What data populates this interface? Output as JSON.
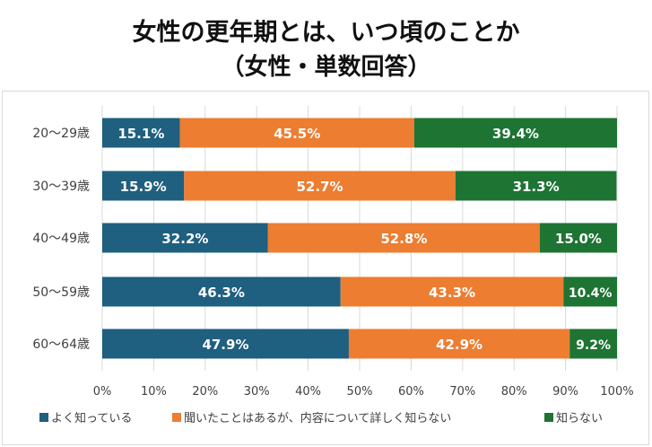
{
  "title": {
    "line1": "女性の更年期とは、いつ頃のことか",
    "line2": "（女性・単数回答）"
  },
  "colors": {
    "series1": "#1f5f7f",
    "series2": "#ed7d31",
    "series3": "#1e7433",
    "grid": "#d9d9d9",
    "label_text": "#ffffff",
    "axis_text": "#404040"
  },
  "chart_data": {
    "type": "bar",
    "orientation": "horizontal",
    "stacked": "percent",
    "title": "女性の更年期とは、いつ頃のことか（女性・単数回答）",
    "categories": [
      "20～29歳",
      "30～39歳",
      "40～49歳",
      "50～59歳",
      "60～64歳"
    ],
    "series": [
      {
        "name": "よく知っている",
        "values": [
          15.1,
          15.9,
          32.2,
          46.3,
          47.9
        ],
        "labels": [
          "15.1%",
          "15.9%",
          "32.2%",
          "46.3%",
          "47.9%"
        ]
      },
      {
        "name": "聞いたことはあるが、内容について詳しく知らない",
        "values": [
          45.5,
          52.7,
          52.8,
          43.3,
          42.9
        ],
        "labels": [
          "45.5%",
          "52.7%",
          "52.8%",
          "43.3%",
          "42.9%"
        ]
      },
      {
        "name": "知らない",
        "values": [
          39.4,
          31.3,
          15.0,
          10.4,
          9.2
        ],
        "labels": [
          "39.4%",
          "31.3%",
          "15.0%",
          "10.4%",
          "9.2%"
        ]
      }
    ],
    "xlim": [
      0,
      100
    ],
    "xticks": [
      "0%",
      "10%",
      "20%",
      "30%",
      "40%",
      "50%",
      "60%",
      "70%",
      "80%",
      "90%",
      "100%"
    ],
    "grid": true,
    "legend": "bottom",
    "xlabel": "",
    "ylabel": ""
  }
}
